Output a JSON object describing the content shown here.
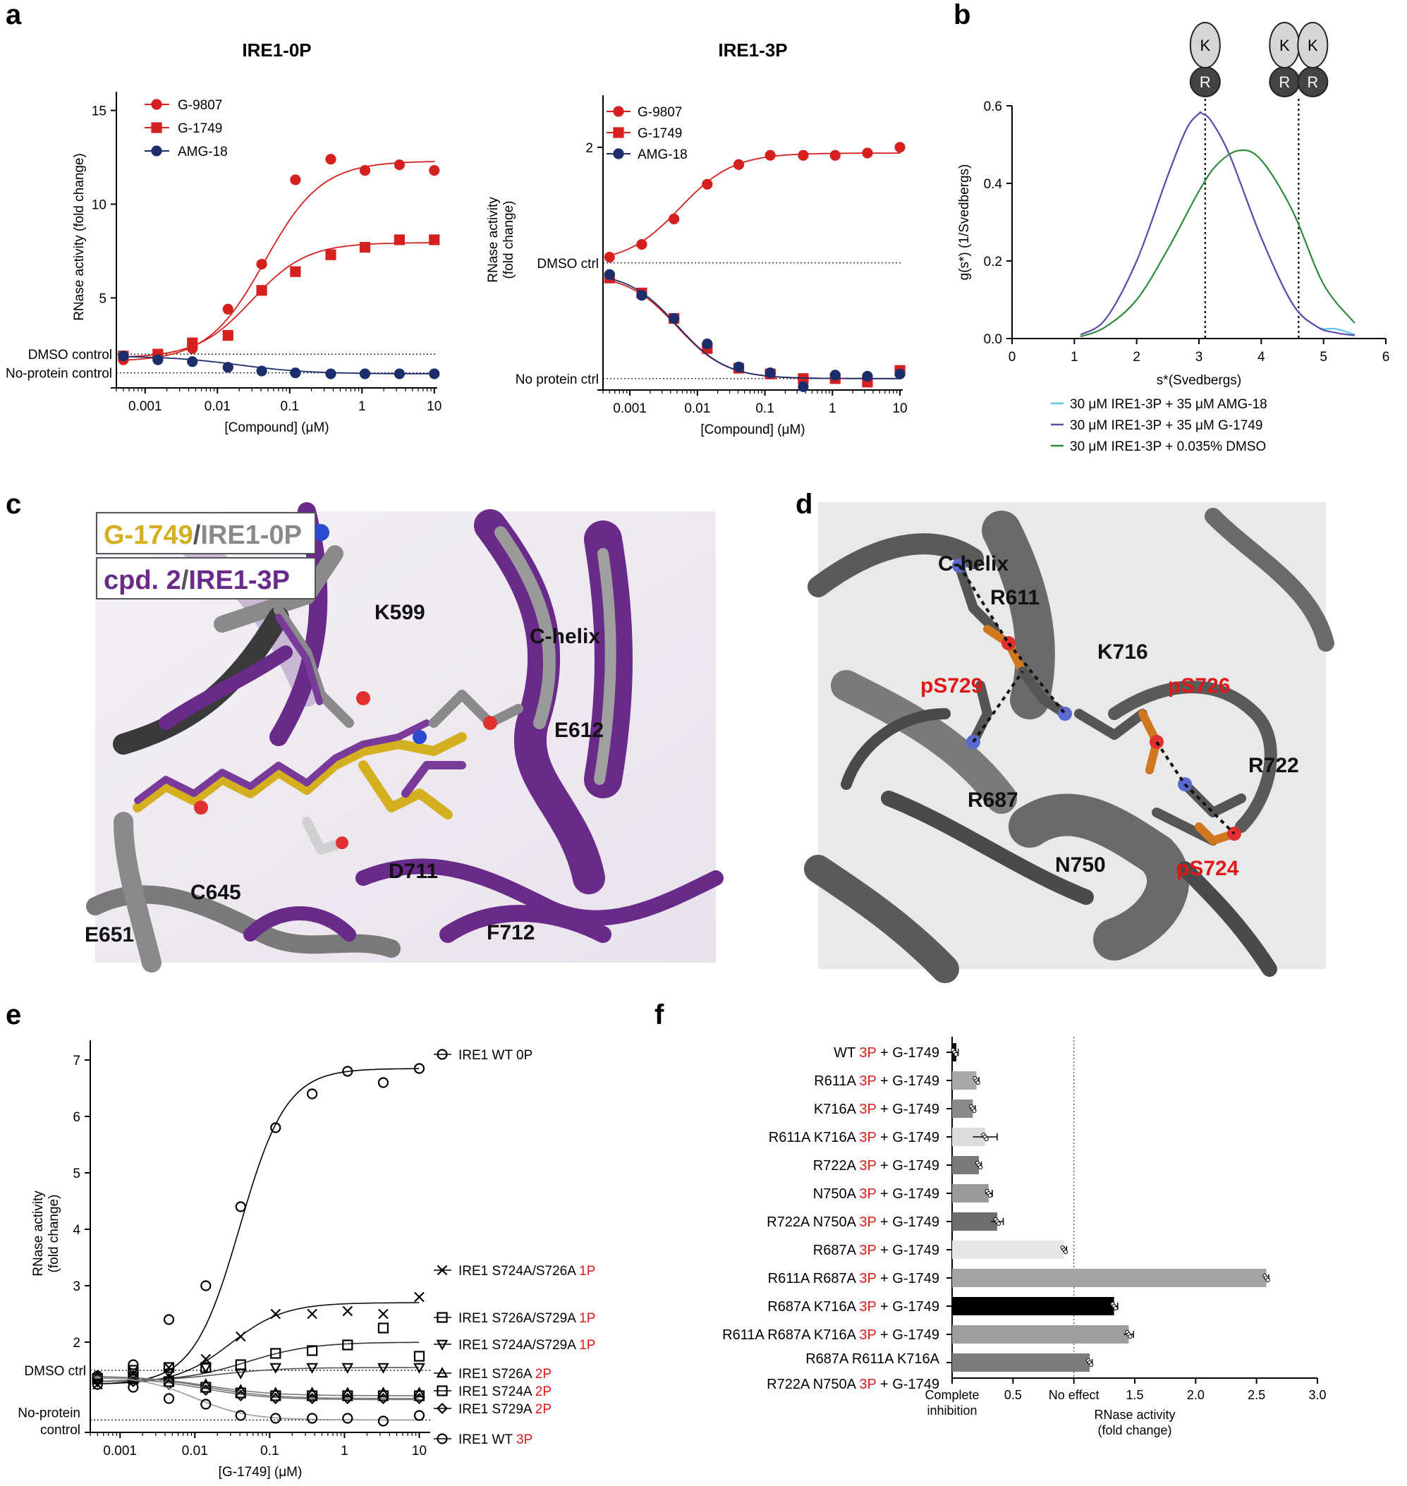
{
  "panel_labels": [
    "a",
    "b",
    "c",
    "d",
    "e",
    "f"
  ],
  "colors": {
    "red": "#d62020",
    "navy": "#1c2d6b",
    "cyan": "#5fc6ea",
    "purple": "#5a4fa8",
    "green": "#2e8a3a",
    "black": "#000000",
    "struct_purple": "#6a2a8a",
    "struct_gray": "#8a8a8a",
    "gold": "#d4b020"
  },
  "panel_c": {
    "legend": {
      "ligand1": "G-1749",
      "protein1": "IRE1-0P",
      "sep": "/",
      "ligand2": "cpd. 2",
      "protein2": "IRE1-3P"
    },
    "labels": [
      "K599",
      "C-helix",
      "E612",
      "D711",
      "C645",
      "E651",
      "F712"
    ]
  },
  "panel_d": {
    "labels": [
      "C-helix",
      "R611",
      "K716",
      "R687",
      "R722",
      "N750"
    ],
    "red_labels": [
      "pS729",
      "pS726",
      "pS724"
    ]
  },
  "chart_data": [
    {
      "id": "a1",
      "type": "scatter",
      "title": "IRE1-0P",
      "xlabel": "[Compound] (μM)",
      "ylabel": "RNase activity (fold change)",
      "xscale": "log",
      "xlim": [
        0.0004,
        11
      ],
      "ylim": [
        0.5,
        16
      ],
      "xticks": [
        "0.001",
        "0.01",
        "0.1",
        "1",
        "10"
      ],
      "yticks": [
        "5",
        "10",
        "15"
      ],
      "ref_lines": [
        {
          "label": "DMSO control",
          "y": 2.0
        },
        {
          "label": "No-protein control",
          "y": 1.0
        }
      ],
      "legend": "top-left",
      "x": [
        0.0005,
        0.0015,
        0.0045,
        0.014,
        0.041,
        0.12,
        0.37,
        1.1,
        3.3,
        10
      ],
      "series": [
        {
          "name": "G-9807",
          "marker": "circle",
          "color": "#d62020",
          "y": [
            1.7,
            1.9,
            2.3,
            4.4,
            6.8,
            11.3,
            12.4,
            11.8,
            12.1,
            11.8
          ],
          "fit": {
            "bottom": 1.6,
            "top": 12.3,
            "ec50": 0.045,
            "hill": 1.1
          }
        },
        {
          "name": "G-1749",
          "marker": "square",
          "color": "#d62020",
          "y": [
            1.9,
            2.0,
            2.6,
            3.0,
            5.4,
            6.4,
            7.3,
            7.7,
            8.1,
            8.1
          ],
          "fit": {
            "bottom": 1.8,
            "top": 7.95,
            "ec50": 0.03,
            "hill": 1.15
          }
        },
        {
          "name": "AMG-18",
          "marker": "circle",
          "color": "#1c2d6b",
          "y": [
            1.9,
            1.7,
            1.6,
            1.3,
            1.1,
            1.0,
            0.95,
            0.95,
            0.95,
            0.95
          ],
          "fit": {
            "bottom": 0.95,
            "top": 1.9,
            "ec50": 0.02,
            "hill": -0.9
          }
        }
      ]
    },
    {
      "id": "a2",
      "type": "scatter",
      "title": "IRE1-3P",
      "xlabel": "[Compound] (μM)",
      "ylabel": "RNase activity (fold change)",
      "xscale": "log",
      "xlim": [
        0.0004,
        11
      ],
      "ylim": [
        -0.05,
        2.45
      ],
      "xticks": [
        "0.001",
        "0.01",
        "0.1",
        "1",
        "10"
      ],
      "yticks": [
        "2"
      ],
      "ref_lines": [
        {
          "label": "DMSO ctrl",
          "y": 1.0
        },
        {
          "label": "No protein ctrl",
          "y": 0.0
        }
      ],
      "legend": "top-left",
      "x": [
        0.0005,
        0.0015,
        0.0045,
        0.014,
        0.041,
        0.12,
        0.37,
        1.1,
        3.3,
        10
      ],
      "series": [
        {
          "name": "G-9807",
          "marker": "circle",
          "color": "#d62020",
          "y": [
            1.05,
            1.16,
            1.38,
            1.68,
            1.85,
            1.93,
            1.93,
            1.93,
            1.95,
            2.0
          ],
          "fit": {
            "bottom": 1.0,
            "top": 1.95,
            "ec50": 0.0055,
            "hill": 1.1
          }
        },
        {
          "name": "G-1749",
          "marker": "square",
          "color": "#d62020",
          "y": [
            0.87,
            0.74,
            0.52,
            0.26,
            0.09,
            0.04,
            0.0,
            0.0,
            -0.03,
            0.07
          ],
          "fit": {
            "bottom": 0.0,
            "top": 0.9,
            "ec50": 0.005,
            "hill": -1.2
          }
        },
        {
          "name": "AMG-18",
          "marker": "circle",
          "color": "#1c2d6b",
          "y": [
            0.9,
            0.72,
            0.52,
            0.3,
            0.1,
            0.05,
            -0.07,
            0.03,
            0.02,
            0.04
          ],
          "fit": {
            "bottom": 0.0,
            "top": 0.92,
            "ec50": 0.005,
            "hill": -1.2
          }
        }
      ]
    },
    {
      "id": "b",
      "type": "line",
      "xlabel": "s*(Svedbergs)",
      "ylabel": "g(s*) (1/Svedbergs)",
      "xlim": [
        0,
        6
      ],
      "ylim": [
        0,
        0.6
      ],
      "xticks": [
        "0",
        "1",
        "2",
        "3",
        "4",
        "5",
        "6"
      ],
      "yticks": [
        "0.0",
        "0.2",
        "0.4",
        "0.6"
      ],
      "vlines": [
        3.1,
        4.6
      ],
      "legend": "below",
      "icons": [
        {
          "kinase": "K",
          "rnase": "R",
          "count": 1
        },
        {
          "kinase": "K",
          "rnase": "R",
          "count": 2
        }
      ],
      "series": [
        {
          "name": "30 μM IRE1-3P + 35 μM AMG-18",
          "color": "#5fc6ea",
          "x": [
            1.1,
            1.5,
            2.0,
            2.5,
            2.8,
            3.0,
            3.05,
            3.2,
            3.5,
            4.0,
            4.5,
            4.9,
            5.2,
            5.5
          ],
          "y": [
            0.01,
            0.05,
            0.2,
            0.42,
            0.54,
            0.58,
            0.58,
            0.56,
            0.47,
            0.26,
            0.09,
            0.03,
            0.025,
            0.01
          ]
        },
        {
          "name": "30 μM IRE1-3P + 35 μM G-1749",
          "color": "#5a4fa8",
          "x": [
            1.1,
            1.5,
            2.0,
            2.5,
            2.8,
            3.0,
            3.05,
            3.2,
            3.5,
            4.0,
            4.5,
            4.9,
            5.2,
            5.5
          ],
          "y": [
            0.01,
            0.05,
            0.2,
            0.42,
            0.54,
            0.58,
            0.58,
            0.56,
            0.47,
            0.26,
            0.09,
            0.03,
            0.015,
            0.008
          ]
        },
        {
          "name": "30 μM IRE1-3P + 0.035% DMSO",
          "color": "#2e8a3a",
          "x": [
            1.1,
            1.5,
            2.0,
            2.5,
            3.0,
            3.3,
            3.65,
            4.0,
            4.5,
            5.0,
            5.5
          ],
          "y": [
            0.005,
            0.03,
            0.1,
            0.23,
            0.38,
            0.45,
            0.485,
            0.46,
            0.33,
            0.14,
            0.04
          ]
        }
      ]
    },
    {
      "id": "e",
      "type": "scatter",
      "xlabel": "[G-1749] (μM)",
      "ylabel": "RNase activity (fold change)",
      "xscale": "log",
      "xlim": [
        0.0004,
        14
      ],
      "ylim": [
        0.5,
        7.35
      ],
      "xticks": [
        "0.001",
        "0.01",
        "0.1",
        "1",
        "10"
      ],
      "yticks": [
        "2",
        "3",
        "4",
        "5",
        "6",
        "7"
      ],
      "ref_lines": [
        {
          "label": "DMSO ctrl",
          "y": 1.5
        },
        {
          "label": "No-protein control",
          "y": 0.62
        }
      ],
      "legend": "right",
      "x": [
        0.0005,
        0.0015,
        0.0045,
        0.014,
        0.041,
        0.12,
        0.37,
        1.1,
        3.3,
        10
      ],
      "series": [
        {
          "name": "IRE1 WT ",
          "suffix": "0P",
          "suffix_red": false,
          "marker": "circle",
          "y": [
            1.25,
            1.6,
            2.4,
            3.0,
            4.4,
            5.8,
            6.4,
            6.8,
            6.6,
            6.85
          ],
          "fit": {
            "bottom": 1.25,
            "top": 6.85,
            "ec50": 0.04,
            "hill": 1.4
          }
        },
        {
          "name": "IRE1 S724A/S726A ",
          "suffix": "1P",
          "suffix_red": true,
          "marker": "x",
          "y": [
            1.25,
            1.45,
            1.55,
            1.7,
            2.1,
            2.5,
            2.5,
            2.55,
            2.5,
            2.8
          ],
          "fit": {
            "bottom": 1.25,
            "top": 2.7,
            "ec50": 0.03,
            "hill": 1.2
          }
        },
        {
          "name": "IRE1 S726A/S729A ",
          "suffix": "1P",
          "suffix_red": true,
          "marker": "square",
          "y": [
            1.35,
            1.5,
            1.55,
            1.55,
            1.6,
            1.8,
            1.85,
            1.95,
            2.25,
            1.75
          ],
          "fit": {
            "bottom": 1.3,
            "top": 2.0,
            "ec50": 0.05,
            "hill": 1.0
          }
        },
        {
          "name": "IRE1 S724A/S729A ",
          "suffix": "1P",
          "suffix_red": true,
          "marker": "tri-down",
          "y": [
            1.3,
            1.4,
            1.45,
            1.55,
            1.45,
            1.55,
            1.55,
            1.55,
            1.55,
            1.55
          ],
          "fit": {
            "bottom": 1.3,
            "top": 1.55,
            "ec50": 0.02,
            "hill": 1.0
          }
        },
        {
          "name": "IRE1 S726A ",
          "suffix": "2P",
          "suffix_red": true,
          "marker": "tri-up",
          "y": [
            1.4,
            1.4,
            1.35,
            1.25,
            1.15,
            1.1,
            1.1,
            1.1,
            1.1,
            1.1
          ],
          "fit": {
            "bottom": 1.05,
            "top": 1.4,
            "ec50": 0.015,
            "hill": -1.0
          }
        },
        {
          "name": "IRE1 S724A ",
          "suffix": "2P",
          "suffix_red": true,
          "marker": "square",
          "y": [
            1.35,
            1.35,
            1.3,
            1.2,
            1.1,
            1.05,
            1.05,
            1.05,
            1.05,
            1.05
          ],
          "fit": {
            "bottom": 1.0,
            "top": 1.4,
            "ec50": 0.015,
            "hill": -1.0
          }
        },
        {
          "name": "IRE1 S729A ",
          "suffix": "2P",
          "suffix_red": true,
          "marker": "diamond",
          "y": [
            1.35,
            1.3,
            1.25,
            1.15,
            1.05,
            1.0,
            1.0,
            1.0,
            1.0,
            1.0
          ],
          "fit": {
            "bottom": 0.98,
            "top": 1.38,
            "ec50": 0.013,
            "hill": -1.0
          }
        },
        {
          "name": "IRE1 WT ",
          "suffix": "3P",
          "suffix_red": true,
          "marker": "circle",
          "y": [
            1.4,
            1.2,
            1.0,
            0.9,
            0.7,
            0.65,
            0.65,
            0.65,
            0.6,
            0.7
          ],
          "fit": {
            "bottom": 0.62,
            "top": 1.4,
            "ec50": 0.01,
            "hill": -1.2
          }
        }
      ]
    },
    {
      "id": "f",
      "type": "bar",
      "orientation": "horizontal",
      "xlabel": "RNase activity (fold change)",
      "xlim": [
        0,
        3.0
      ],
      "xticks": [
        "Complete inhibition",
        "0.5",
        "No effect",
        "1.5",
        "2.0",
        "2.5",
        "3.0"
      ],
      "ref_line": 1.0,
      "categories": [
        {
          "pre": "WT ",
          "mid": "3P",
          "post": " + G-1749"
        },
        {
          "pre": "R611A ",
          "mid": "3P",
          "post": " + G-1749"
        },
        {
          "pre": "K716A ",
          "mid": "3P",
          "post": " + G-1749"
        },
        {
          "pre": "R611A K716A ",
          "mid": "3P",
          "post": " + G-1749"
        },
        {
          "pre": "R722A ",
          "mid": "3P",
          "post": " + G-1749"
        },
        {
          "pre": "N750A ",
          "mid": "3P",
          "post": " + G-1749"
        },
        {
          "pre": "R722A N750A ",
          "mid": "3P",
          "post": " + G-1749"
        },
        {
          "pre": "R687A ",
          "mid": "3P",
          "post": " + G-1749"
        },
        {
          "pre": "R611A R687A ",
          "mid": "3P",
          "post": " + G-1749"
        },
        {
          "pre": "R687A K716A ",
          "mid": "3P",
          "post": " + G-1749"
        },
        {
          "pre": "R611A R687A K716A ",
          "mid": "3P",
          "post": " + G-1749"
        },
        {
          "pre": "R687A R611A K716A",
          "mid": "",
          "post": "",
          "line2": {
            "pre": "R722A N750A ",
            "mid": "3P",
            "post": " + G-1749"
          }
        }
      ],
      "values": [
        0.02,
        0.2,
        0.17,
        0.27,
        0.22,
        0.3,
        0.37,
        0.92,
        2.58,
        1.33,
        1.45,
        1.13
      ],
      "errors": [
        0.03,
        0.02,
        0.02,
        0.1,
        0.02,
        0.03,
        0.05,
        0.02,
        0.02,
        0.03,
        0.04,
        0.02
      ],
      "bar_colors": [
        "#111111",
        "#a8a8a8",
        "#8a8a8a",
        "#dcdcdc",
        "#7a7a7a",
        "#9a9a9a",
        "#6e6e6e",
        "#e6e6e6",
        "#a3a3a3",
        "#000000",
        "#9e9e9e",
        "#7c7c7c"
      ]
    }
  ]
}
